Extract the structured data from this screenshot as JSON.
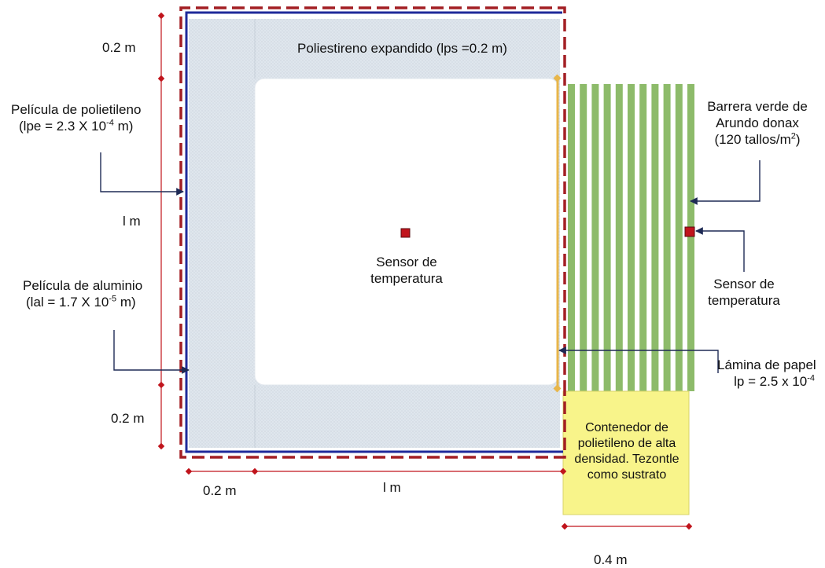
{
  "labels": {
    "dim_top_left": "0.2 m",
    "dim_left_mid": "l m",
    "dim_bottom_left": "0.2 m",
    "dim_bottom_x1": "0.2 m",
    "dim_bottom_x2": "l m",
    "dim_right_bottom": "0.4 m",
    "polystyrene": "Poliestireno expandido (lps =0.2 m)",
    "pe_film": {
      "line1": "Película de polietileno",
      "line2_a": "(lpe = 2.3 X 10",
      "line2_sup": "-4",
      "line2_b": " m)"
    },
    "al_film": {
      "line1": "Película de aluminio",
      "line2_a": "(lal = 1.7 X 10",
      "line2_sup": "-5",
      "line2_b": " m)"
    },
    "sensor_inner": {
      "line1": "Sensor de",
      "line2": "temperatura"
    },
    "sensor_outer": {
      "line1": "Sensor de",
      "line2": "temperatura"
    },
    "green_barrier": {
      "line1": "Barrera verde de",
      "line2": "Arundo donax",
      "line3_a": "(120 tallos/m",
      "line3_sup": "2",
      "line3_b": ")"
    },
    "paper": {
      "line1": "Lámina de papel",
      "line2_a": "lp = 2.5 x 10",
      "line2_sup": "-4"
    },
    "container": {
      "line1": "Contenedor de",
      "line2": "polietileno de alta",
      "line3": "densidad. Tezontle",
      "line4": "como sustrato"
    }
  },
  "colors": {
    "dashed_outline": "#a31f24",
    "blue_film": "#1f2a9a",
    "insulation": "#dde5ec",
    "green_stems": "#8dbb6a",
    "paper_line": "#e8b64a",
    "container": "#f8f48a",
    "sensor": "#c0141c",
    "dimension": "#c0141c",
    "arrow": "#1e2a55"
  },
  "icons": {
    "sensor": "square-marker-icon",
    "dim_end": "diamond-icon",
    "pointer": "arrow-icon"
  }
}
